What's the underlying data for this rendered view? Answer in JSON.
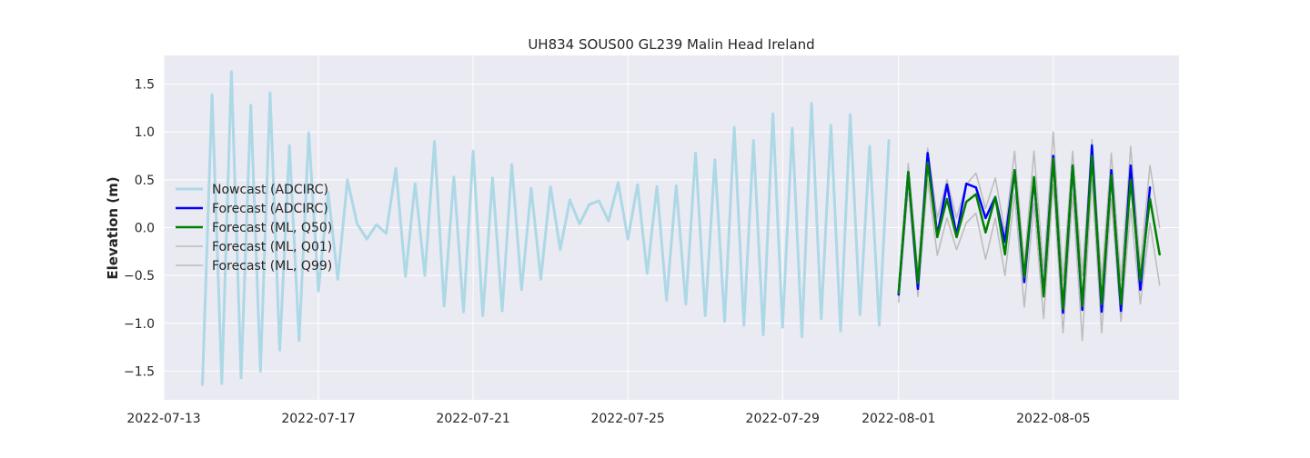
{
  "chart_data": {
    "type": "line",
    "title": "UH834 SOUS00 GL239 Malin Head Ireland",
    "xlabel": "",
    "ylabel": "Elevation (m)",
    "xlim": [
      "2022-07-13T00:00",
      "2022-08-08T06:00"
    ],
    "ylim": [
      -1.8,
      1.8
    ],
    "grid": true,
    "legend_position": "center-left",
    "background_color": "#eaeaf2",
    "x_ticks": [
      "2022-07-13",
      "2022-07-17",
      "2022-07-21",
      "2022-07-25",
      "2022-07-29",
      "2022-08-01",
      "2022-08-05"
    ],
    "y_ticks": [
      -1.5,
      -1.0,
      -0.5,
      0.0,
      0.5,
      1.0,
      1.5
    ],
    "y_tick_labels": [
      "−1.5",
      "−1.0",
      "−0.5",
      "0.0",
      "0.5",
      "1.0",
      "1.5"
    ],
    "series": [
      {
        "name": "Nowcast (ADCIRC)",
        "color": "#add8e6",
        "width": 3,
        "x": [
          "2022-07-14T00:00",
          "2022-07-14T06:00",
          "2022-07-14T12:00",
          "2022-07-14T18:00",
          "2022-07-15T00:00",
          "2022-07-15T06:00",
          "2022-07-15T12:00",
          "2022-07-15T18:00",
          "2022-07-16T00:00",
          "2022-07-16T06:00",
          "2022-07-16T12:00",
          "2022-07-16T18:00",
          "2022-07-17T00:00",
          "2022-07-17T06:00",
          "2022-07-17T12:00",
          "2022-07-17T18:00",
          "2022-07-18T00:00",
          "2022-07-18T06:00",
          "2022-07-18T12:00",
          "2022-07-18T18:00",
          "2022-07-19T00:00",
          "2022-07-19T06:00",
          "2022-07-19T12:00",
          "2022-07-19T18:00",
          "2022-07-20T00:00",
          "2022-07-20T06:00",
          "2022-07-20T12:00",
          "2022-07-20T18:00",
          "2022-07-21T00:00",
          "2022-07-21T06:00",
          "2022-07-21T12:00",
          "2022-07-21T18:00",
          "2022-07-22T00:00",
          "2022-07-22T06:00",
          "2022-07-22T12:00",
          "2022-07-22T18:00",
          "2022-07-23T00:00",
          "2022-07-23T06:00",
          "2022-07-23T12:00",
          "2022-07-23T18:00",
          "2022-07-24T00:00",
          "2022-07-24T06:00",
          "2022-07-24T12:00",
          "2022-07-24T18:00",
          "2022-07-25T00:00",
          "2022-07-25T06:00",
          "2022-07-25T12:00",
          "2022-07-25T18:00",
          "2022-07-26T00:00",
          "2022-07-26T06:00",
          "2022-07-26T12:00",
          "2022-07-26T18:00",
          "2022-07-27T00:00",
          "2022-07-27T06:00",
          "2022-07-27T12:00",
          "2022-07-27T18:00",
          "2022-07-28T00:00",
          "2022-07-28T06:00",
          "2022-07-28T12:00",
          "2022-07-28T18:00",
          "2022-07-29T00:00",
          "2022-07-29T06:00",
          "2022-07-29T12:00",
          "2022-07-29T18:00",
          "2022-07-30T00:00",
          "2022-07-30T06:00",
          "2022-07-30T12:00",
          "2022-07-30T18:00",
          "2022-07-31T00:00",
          "2022-07-31T06:00",
          "2022-07-31T12:00",
          "2022-07-31T18:00"
        ],
        "y": [
          -1.64,
          1.39,
          -1.63,
          1.63,
          -1.57,
          1.28,
          -1.5,
          1.41,
          -1.28,
          0.86,
          -1.18,
          0.99,
          -0.66,
          0.37,
          -0.54,
          0.5,
          0.04,
          -0.12,
          0.03,
          -0.06,
          0.62,
          -0.51,
          0.46,
          -0.5,
          0.9,
          -0.82,
          0.53,
          -0.88,
          0.8,
          -0.92,
          0.52,
          -0.87,
          0.66,
          -0.65,
          0.41,
          -0.54,
          0.43,
          -0.23,
          0.29,
          0.04,
          0.24,
          0.28,
          0.07,
          0.47,
          -0.12,
          0.45,
          -0.48,
          0.43,
          -0.76,
          0.44,
          -0.8,
          0.78,
          -0.92,
          0.71,
          -0.98,
          1.05,
          -1.02,
          0.91,
          -1.12,
          1.19,
          -1.04,
          1.04,
          -1.14,
          1.3,
          -0.95,
          1.07,
          -1.08,
          1.18,
          -0.91,
          0.85,
          -1.02,
          0.91
        ]
      },
      {
        "name": "Forecast (ADCIRC)",
        "color": "#0000ff",
        "width": 2.5,
        "x": [
          "2022-08-01T00:00",
          "2022-08-01T06:00",
          "2022-08-01T12:00",
          "2022-08-01T18:00",
          "2022-08-02T00:00",
          "2022-08-02T06:00",
          "2022-08-02T12:00",
          "2022-08-02T18:00",
          "2022-08-03T00:00",
          "2022-08-03T06:00",
          "2022-08-03T12:00",
          "2022-08-03T18:00",
          "2022-08-04T00:00",
          "2022-08-04T06:00",
          "2022-08-04T12:00",
          "2022-08-04T18:00",
          "2022-08-05T00:00",
          "2022-08-05T06:00",
          "2022-08-05T12:00",
          "2022-08-05T18:00",
          "2022-08-06T00:00",
          "2022-08-06T06:00",
          "2022-08-06T12:00",
          "2022-08-06T18:00",
          "2022-08-07T00:00",
          "2022-08-07T06:00",
          "2022-08-07T12:00",
          "2022-08-07T18:00"
        ],
        "y": [
          -0.7,
          0.58,
          -0.64,
          0.78,
          -0.08,
          0.45,
          -0.08,
          0.46,
          0.42,
          0.1,
          0.32,
          -0.15,
          0.6,
          -0.57,
          0.51,
          -0.7,
          0.75,
          -0.89,
          0.65,
          -0.86,
          0.86,
          -0.88,
          0.6,
          -0.87,
          0.65,
          -0.65,
          0.42,
          null
        ]
      },
      {
        "name": "Forecast (ML, Q50)",
        "color": "#008000",
        "width": 2.5,
        "x": [
          "2022-08-01T00:00",
          "2022-08-01T06:00",
          "2022-08-01T12:00",
          "2022-08-01T18:00",
          "2022-08-02T00:00",
          "2022-08-02T06:00",
          "2022-08-02T12:00",
          "2022-08-02T18:00",
          "2022-08-03T00:00",
          "2022-08-03T06:00",
          "2022-08-03T12:00",
          "2022-08-03T18:00",
          "2022-08-04T00:00",
          "2022-08-04T06:00",
          "2022-08-04T12:00",
          "2022-08-04T18:00",
          "2022-08-05T00:00",
          "2022-08-05T06:00",
          "2022-08-05T12:00",
          "2022-08-05T18:00",
          "2022-08-06T00:00",
          "2022-08-06T06:00",
          "2022-08-06T12:00",
          "2022-08-06T18:00",
          "2022-08-07T00:00",
          "2022-08-07T06:00",
          "2022-08-07T12:00",
          "2022-08-07T18:00"
        ],
        "y": [
          -0.68,
          0.58,
          -0.58,
          0.68,
          -0.1,
          0.3,
          -0.1,
          0.27,
          0.35,
          -0.05,
          0.32,
          -0.28,
          0.6,
          -0.52,
          0.53,
          -0.72,
          0.72,
          -0.85,
          0.65,
          -0.82,
          0.75,
          -0.8,
          0.55,
          -0.8,
          0.5,
          -0.55,
          0.3,
          -0.28
        ]
      },
      {
        "name": "Forecast (ML, Q01)",
        "color": "#bbbbbb",
        "width": 1.5,
        "x": [
          "2022-08-01T00:00",
          "2022-08-01T06:00",
          "2022-08-01T12:00",
          "2022-08-01T18:00",
          "2022-08-02T00:00",
          "2022-08-02T06:00",
          "2022-08-02T12:00",
          "2022-08-02T18:00",
          "2022-08-03T00:00",
          "2022-08-03T06:00",
          "2022-08-03T12:00",
          "2022-08-03T18:00",
          "2022-08-04T00:00",
          "2022-08-04T06:00",
          "2022-08-04T12:00",
          "2022-08-04T18:00",
          "2022-08-05T00:00",
          "2022-08-05T06:00",
          "2022-08-05T12:00",
          "2022-08-05T18:00",
          "2022-08-06T00:00",
          "2022-08-06T06:00",
          "2022-08-06T12:00",
          "2022-08-06T18:00",
          "2022-08-07T00:00",
          "2022-08-07T06:00",
          "2022-08-07T12:00",
          "2022-08-07T18:00"
        ],
        "y": [
          -0.78,
          0.42,
          -0.72,
          0.5,
          -0.29,
          0.1,
          -0.23,
          0.05,
          0.15,
          -0.33,
          0.1,
          -0.5,
          0.35,
          -0.83,
          0.25,
          -0.95,
          0.45,
          -1.1,
          0.35,
          -1.18,
          0.5,
          -1.1,
          0.3,
          -0.98,
          0.2,
          -0.8,
          0.05,
          -0.6
        ]
      },
      {
        "name": "Forecast (ML, Q99)",
        "color": "#bbbbbb",
        "width": 1.5,
        "x": [
          "2022-08-01T00:00",
          "2022-08-01T06:00",
          "2022-08-01T12:00",
          "2022-08-01T18:00",
          "2022-08-02T00:00",
          "2022-08-02T06:00",
          "2022-08-02T12:00",
          "2022-08-02T18:00",
          "2022-08-03T00:00",
          "2022-08-03T06:00",
          "2022-08-03T12:00",
          "2022-08-03T18:00",
          "2022-08-04T00:00",
          "2022-08-04T06:00",
          "2022-08-04T12:00",
          "2022-08-04T18:00",
          "2022-08-05T00:00",
          "2022-08-05T06:00",
          "2022-08-05T12:00",
          "2022-08-05T18:00",
          "2022-08-06T00:00",
          "2022-08-06T06:00",
          "2022-08-06T12:00",
          "2022-08-06T18:00",
          "2022-08-07T00:00",
          "2022-08-07T06:00",
          "2022-08-07T12:00",
          "2022-08-07T18:00"
        ],
        "y": [
          -0.6,
          0.67,
          -0.45,
          0.83,
          0.1,
          0.5,
          0.1,
          0.45,
          0.57,
          0.2,
          0.52,
          -0.05,
          0.8,
          -0.38,
          0.8,
          -0.45,
          1.0,
          -0.55,
          0.8,
          -0.5,
          0.92,
          -0.55,
          0.78,
          -0.55,
          0.85,
          -0.4,
          0.65,
          0.0
        ]
      }
    ]
  }
}
